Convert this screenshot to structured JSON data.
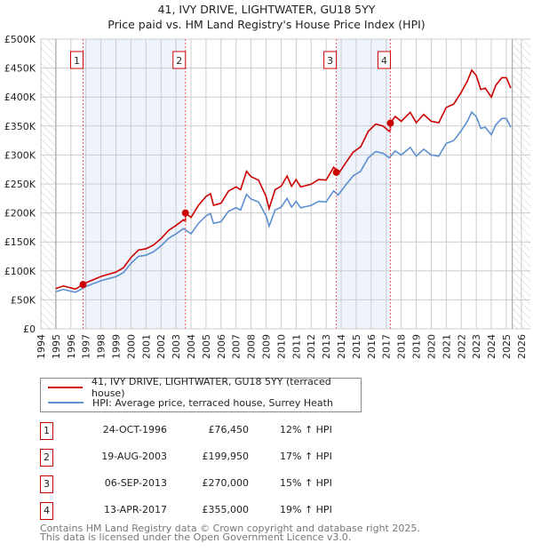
{
  "chart_data": {
    "type": "line",
    "title": "41, IVY DRIVE, LIGHTWATER, GU18 5YY",
    "subtitle": "Price paid vs. HM Land Registry's House Price Index (HPI)",
    "xlim": [
      1994,
      2026.6
    ],
    "ylim": [
      0,
      500000
    ],
    "x_ticks": [
      1994,
      1995,
      1996,
      1997,
      1998,
      1999,
      2000,
      2001,
      2002,
      2003,
      2004,
      2005,
      2006,
      2007,
      2008,
      2009,
      2010,
      2011,
      2012,
      2013,
      2014,
      2015,
      2016,
      2017,
      2018,
      2019,
      2020,
      2021,
      2022,
      2023,
      2024,
      2025,
      2026
    ],
    "y_ticks": [
      {
        "v": 0,
        "l": "£0"
      },
      {
        "v": 50000,
        "l": "£50K"
      },
      {
        "v": 100000,
        "l": "£100K"
      },
      {
        "v": 150000,
        "l": "£150K"
      },
      {
        "v": 200000,
        "l": "£200K"
      },
      {
        "v": 250000,
        "l": "£250K"
      },
      {
        "v": 300000,
        "l": "£300K"
      },
      {
        "v": 350000,
        "l": "£350K"
      },
      {
        "v": 400000,
        "l": "£400K"
      },
      {
        "v": 450000,
        "l": "£450K"
      },
      {
        "v": 500000,
        "l": "£500K"
      }
    ],
    "data_start": 1995,
    "data_end": 2025.4,
    "series": [
      {
        "name": "41, IVY DRIVE, LIGHTWATER, GU18 5YY (terraced house)",
        "color": "#cc0000",
        "derived_from_hpi_and_sales": true
      },
      {
        "name": "HPI: Average price, terraced house, Surrey Heath",
        "color": "#5b8fd0",
        "x": [
          1995,
          1995.5,
          1996.3,
          1997,
          1998,
          1999,
          1999.5,
          2000,
          2000.5,
          2001,
          2001.5,
          2002,
          2002.5,
          2003,
          2003.5,
          2004,
          2004.5,
          2005,
          2005.3,
          2005.5,
          2006,
          2006.5,
          2007,
          2007.3,
          2007.7,
          2008,
          2008.5,
          2009,
          2009.2,
          2009.6,
          2010,
          2010.4,
          2010.7,
          2011,
          2011.3,
          2012,
          2012.5,
          2013,
          2013.5,
          2013.8,
          2014.3,
          2014.8,
          2015.3,
          2015.8,
          2016.3,
          2016.8,
          2017.2,
          2017.6,
          2018,
          2018.6,
          2019,
          2019.5,
          2020,
          2020.5,
          2021,
          2021.5,
          2022,
          2022.4,
          2022.7,
          2023,
          2023.3,
          2023.6,
          2024,
          2024.3,
          2024.7,
          2025,
          2025.3
        ],
        "y": [
          64,
          68,
          63,
          73,
          83,
          90,
          97,
          113,
          125,
          127,
          133,
          143,
          156,
          164,
          173,
          164,
          182,
          195,
          199,
          182,
          185,
          203,
          209,
          205,
          232,
          224,
          219,
          195,
          177,
          205,
          210,
          225,
          210,
          220,
          209,
          213,
          220,
          219,
          238,
          231,
          248,
          264,
          272,
          295,
          306,
          303,
          295,
          307,
          300,
          313,
          298,
          310,
          300,
          298,
          320,
          325,
          342,
          358,
          374,
          366,
          346,
          348,
          335,
          352,
          363,
          363,
          348
        ],
        "unit": "£K"
      }
    ],
    "sales": [
      {
        "n": "1",
        "x": 1996.81,
        "date": "24-OCT-1996",
        "price": "£76,450",
        "value": 76450,
        "hpi": "12% ↑ HPI"
      },
      {
        "n": "2",
        "x": 2003.63,
        "date": "19-AUG-2003",
        "price": "£199,950",
        "value": 199950,
        "hpi": "17% ↑ HPI"
      },
      {
        "n": "3",
        "x": 2013.68,
        "date": "06-SEP-2013",
        "price": "£270,000",
        "value": 270000,
        "hpi": "15% ↑ HPI"
      },
      {
        "n": "4",
        "x": 2017.28,
        "date": "13-APR-2017",
        "price": "£355,000",
        "value": 355000,
        "hpi": "19% ↑ HPI"
      }
    ]
  },
  "footer": {
    "line1": "Contains HM Land Registry data © Crown copyright and database right 2025.",
    "line2": "This data is licensed under the Open Government Licence v3.0."
  }
}
